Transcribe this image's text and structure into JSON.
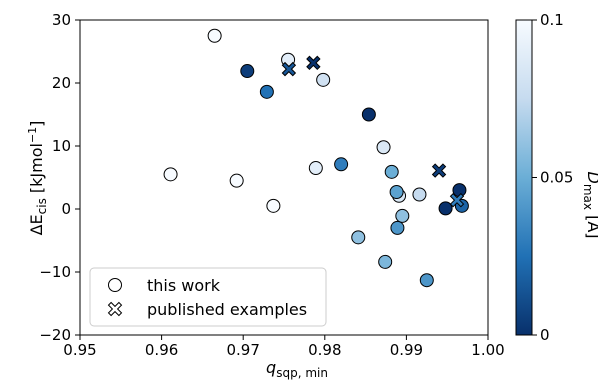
{
  "chart_data": {
    "type": "scatter",
    "xlabel": {
      "main": "q",
      "sub": "sqp, min"
    },
    "ylabel": {
      "pre": "ΔE",
      "sub": "cis",
      "post": " [kJmol",
      "sup": "−1",
      "end": "]"
    },
    "xlim": [
      0.95,
      1.0
    ],
    "ylim": [
      -20,
      30
    ],
    "xticks": [
      "0.95",
      "0.96",
      "0.97",
      "0.98",
      "0.99",
      "1.00"
    ],
    "yticks": [
      "−20",
      "−10",
      "0",
      "10",
      "20",
      "30"
    ],
    "colorbar": {
      "label": {
        "main": "D",
        "sub": "max",
        "post": " [Å]"
      },
      "range": [
        0,
        0.1
      ],
      "ticks": [
        "0",
        "0.05",
        "0.1"
      ],
      "colors": [
        "#08306b",
        "#2171b5",
        "#6baed6",
        "#c6dbef",
        "#f7fbff"
      ]
    },
    "legend": {
      "position": "lower-left",
      "entries": [
        {
          "marker": "circle",
          "label": "this work"
        },
        {
          "marker": "x",
          "label": "published examples"
        }
      ]
    },
    "series": [
      {
        "marker": "circle",
        "points": [
          {
            "x": 0.9665,
            "y": 27.5,
            "c": 0.1
          },
          {
            "x": 0.9755,
            "y": 23.7,
            "c": 0.09
          },
          {
            "x": 0.9705,
            "y": 21.9,
            "c": 0.005
          },
          {
            "x": 0.9729,
            "y": 18.6,
            "c": 0.025
          },
          {
            "x": 0.9798,
            "y": 20.5,
            "c": 0.08
          },
          {
            "x": 0.9854,
            "y": 15.0,
            "c": 0.0
          },
          {
            "x": 0.9872,
            "y": 9.8,
            "c": 0.085
          },
          {
            "x": 0.9611,
            "y": 5.5,
            "c": 0.1
          },
          {
            "x": 0.9692,
            "y": 4.5,
            "c": 0.1
          },
          {
            "x": 0.9737,
            "y": 0.5,
            "c": 0.1
          },
          {
            "x": 0.9789,
            "y": 6.5,
            "c": 0.09
          },
          {
            "x": 0.982,
            "y": 7.1,
            "c": 0.03
          },
          {
            "x": 0.9882,
            "y": 5.9,
            "c": 0.05
          },
          {
            "x": 0.9891,
            "y": 2.1,
            "c": 0.085
          },
          {
            "x": 0.9888,
            "y": 2.7,
            "c": 0.045
          },
          {
            "x": 0.9916,
            "y": 2.3,
            "c": 0.075
          },
          {
            "x": 0.9895,
            "y": -1.1,
            "c": 0.06
          },
          {
            "x": 0.9889,
            "y": -3.0,
            "c": 0.04
          },
          {
            "x": 0.9841,
            "y": -4.5,
            "c": 0.06
          },
          {
            "x": 0.9874,
            "y": -8.4,
            "c": 0.055
          },
          {
            "x": 0.9925,
            "y": -11.3,
            "c": 0.04
          },
          {
            "x": 0.9948,
            "y": 0.1,
            "c": 0.0
          },
          {
            "x": 0.9965,
            "y": 3.0,
            "c": 0.0
          },
          {
            "x": 0.9968,
            "y": 0.5,
            "c": 0.02
          }
        ]
      },
      {
        "marker": "x",
        "points": [
          {
            "x": 0.9756,
            "y": 22.2,
            "c": 0.015
          },
          {
            "x": 0.9786,
            "y": 23.2,
            "c": 0.0
          },
          {
            "x": 0.994,
            "y": 6.1,
            "c": 0.005
          },
          {
            "x": 0.9962,
            "y": 1.4,
            "c": 0.03
          }
        ]
      }
    ]
  }
}
